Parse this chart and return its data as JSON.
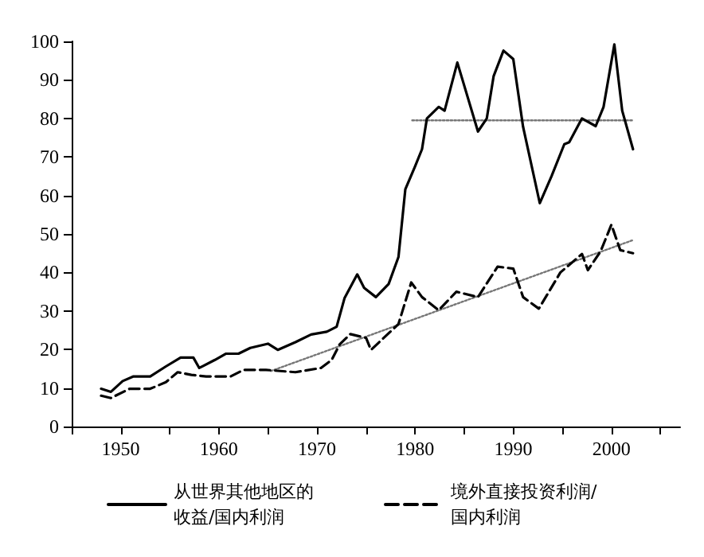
{
  "chart_data": {
    "type": "line",
    "xlim": [
      1945,
      2007
    ],
    "xticks": [
      {
        "value": 1945,
        "label": null
      },
      1950,
      {
        "value": 1955,
        "label": null
      },
      1960,
      {
        "value": 1965,
        "label": null
      },
      1970,
      {
        "value": 1975,
        "label": null
      },
      1980,
      {
        "value": 1985,
        "label": null
      },
      1990,
      {
        "value": 1995,
        "label": null
      },
      2000,
      {
        "value": 2005,
        "label": null
      }
    ],
    "ylim": [
      0,
      100
    ],
    "yticks": [
      0,
      10,
      20,
      30,
      40,
      50,
      60,
      70,
      80,
      90,
      100
    ],
    "grid": false,
    "marker": "none",
    "legend": "bottom",
    "series": [
      {
        "name": "从世界其他地区的收益/国内利润",
        "color": "#000000",
        "line_style": "solid",
        "x": [
          1948,
          1949,
          1950.2,
          1951.3,
          1953,
          1954.6,
          1956.1,
          1957.4,
          1958,
          1959.6,
          1960.7,
          1962,
          1963.2,
          1965,
          1966,
          1967.8,
          1969.4,
          1971,
          1972,
          1972.8,
          1974.1,
          1974.8,
          1976,
          1977.3,
          1978.3,
          1979,
          1980,
          1980.7,
          1981.2,
          1982.4,
          1983,
          1984.3,
          1986.4,
          1987.3,
          1988,
          1989,
          1990,
          1991,
          1992.7,
          1993.9,
          1995.2,
          1995.7,
          1997,
          1998.4,
          1999.2,
          2000.3,
          2001.1,
          2002.2
        ],
        "values": [
          9.8,
          9,
          11.8,
          13,
          13,
          15.6,
          17.9,
          17.9,
          15.2,
          17.3,
          18.9,
          18.9,
          20.4,
          21.5,
          19.9,
          21.9,
          23.9,
          24.6,
          25.9,
          33.3,
          39.5,
          36,
          33.6,
          37,
          44,
          61.6,
          67.6,
          72,
          80,
          83,
          82,
          94.5,
          76.6,
          80,
          91,
          97.6,
          95.4,
          77.8,
          58,
          65,
          73.3,
          73.8,
          80,
          78,
          83,
          99.2,
          82,
          72
        ]
      },
      {
        "name": "境外直接投资利润/国内利润",
        "color": "#000000",
        "line_style": "dashed",
        "x": [
          1948,
          1949,
          1950.9,
          1953,
          1954.6,
          1955.8,
          1957.2,
          1958.7,
          1961.2,
          1962.5,
          1964.8,
          1967.8,
          1970.4,
          1971.5,
          1972.3,
          1973.4,
          1975,
          1975.5,
          1978.3,
          1979.6,
          1980.7,
          1982.4,
          1984.2,
          1986.4,
          1988.4,
          1990,
          1991,
          1992.6,
          1994.8,
          1997,
          1997.6,
          1998.9,
          2000,
          2000.9,
          2002.2
        ],
        "values": [
          8,
          7.4,
          9.8,
          9.8,
          11.5,
          14.1,
          13.4,
          13,
          13,
          14.7,
          14.7,
          14.1,
          15.2,
          17.3,
          21.3,
          24,
          23,
          19.9,
          26.6,
          37.4,
          33.6,
          30.2,
          35,
          33.6,
          41.5,
          41,
          33.6,
          30.6,
          40,
          44.8,
          40.6,
          45.5,
          52.4,
          45.8,
          45
        ]
      },
      {
        "color": "#777777",
        "line_style": "dotted",
        "x": [
          1979.7,
          2002.2
        ],
        "values": [
          79.5,
          79.5
        ]
      },
      {
        "color": "#777777",
        "line_style": "dotted",
        "x": [
          1965.3,
          2002.2
        ],
        "values": [
          14.4,
          48.4
        ]
      }
    ]
  }
}
